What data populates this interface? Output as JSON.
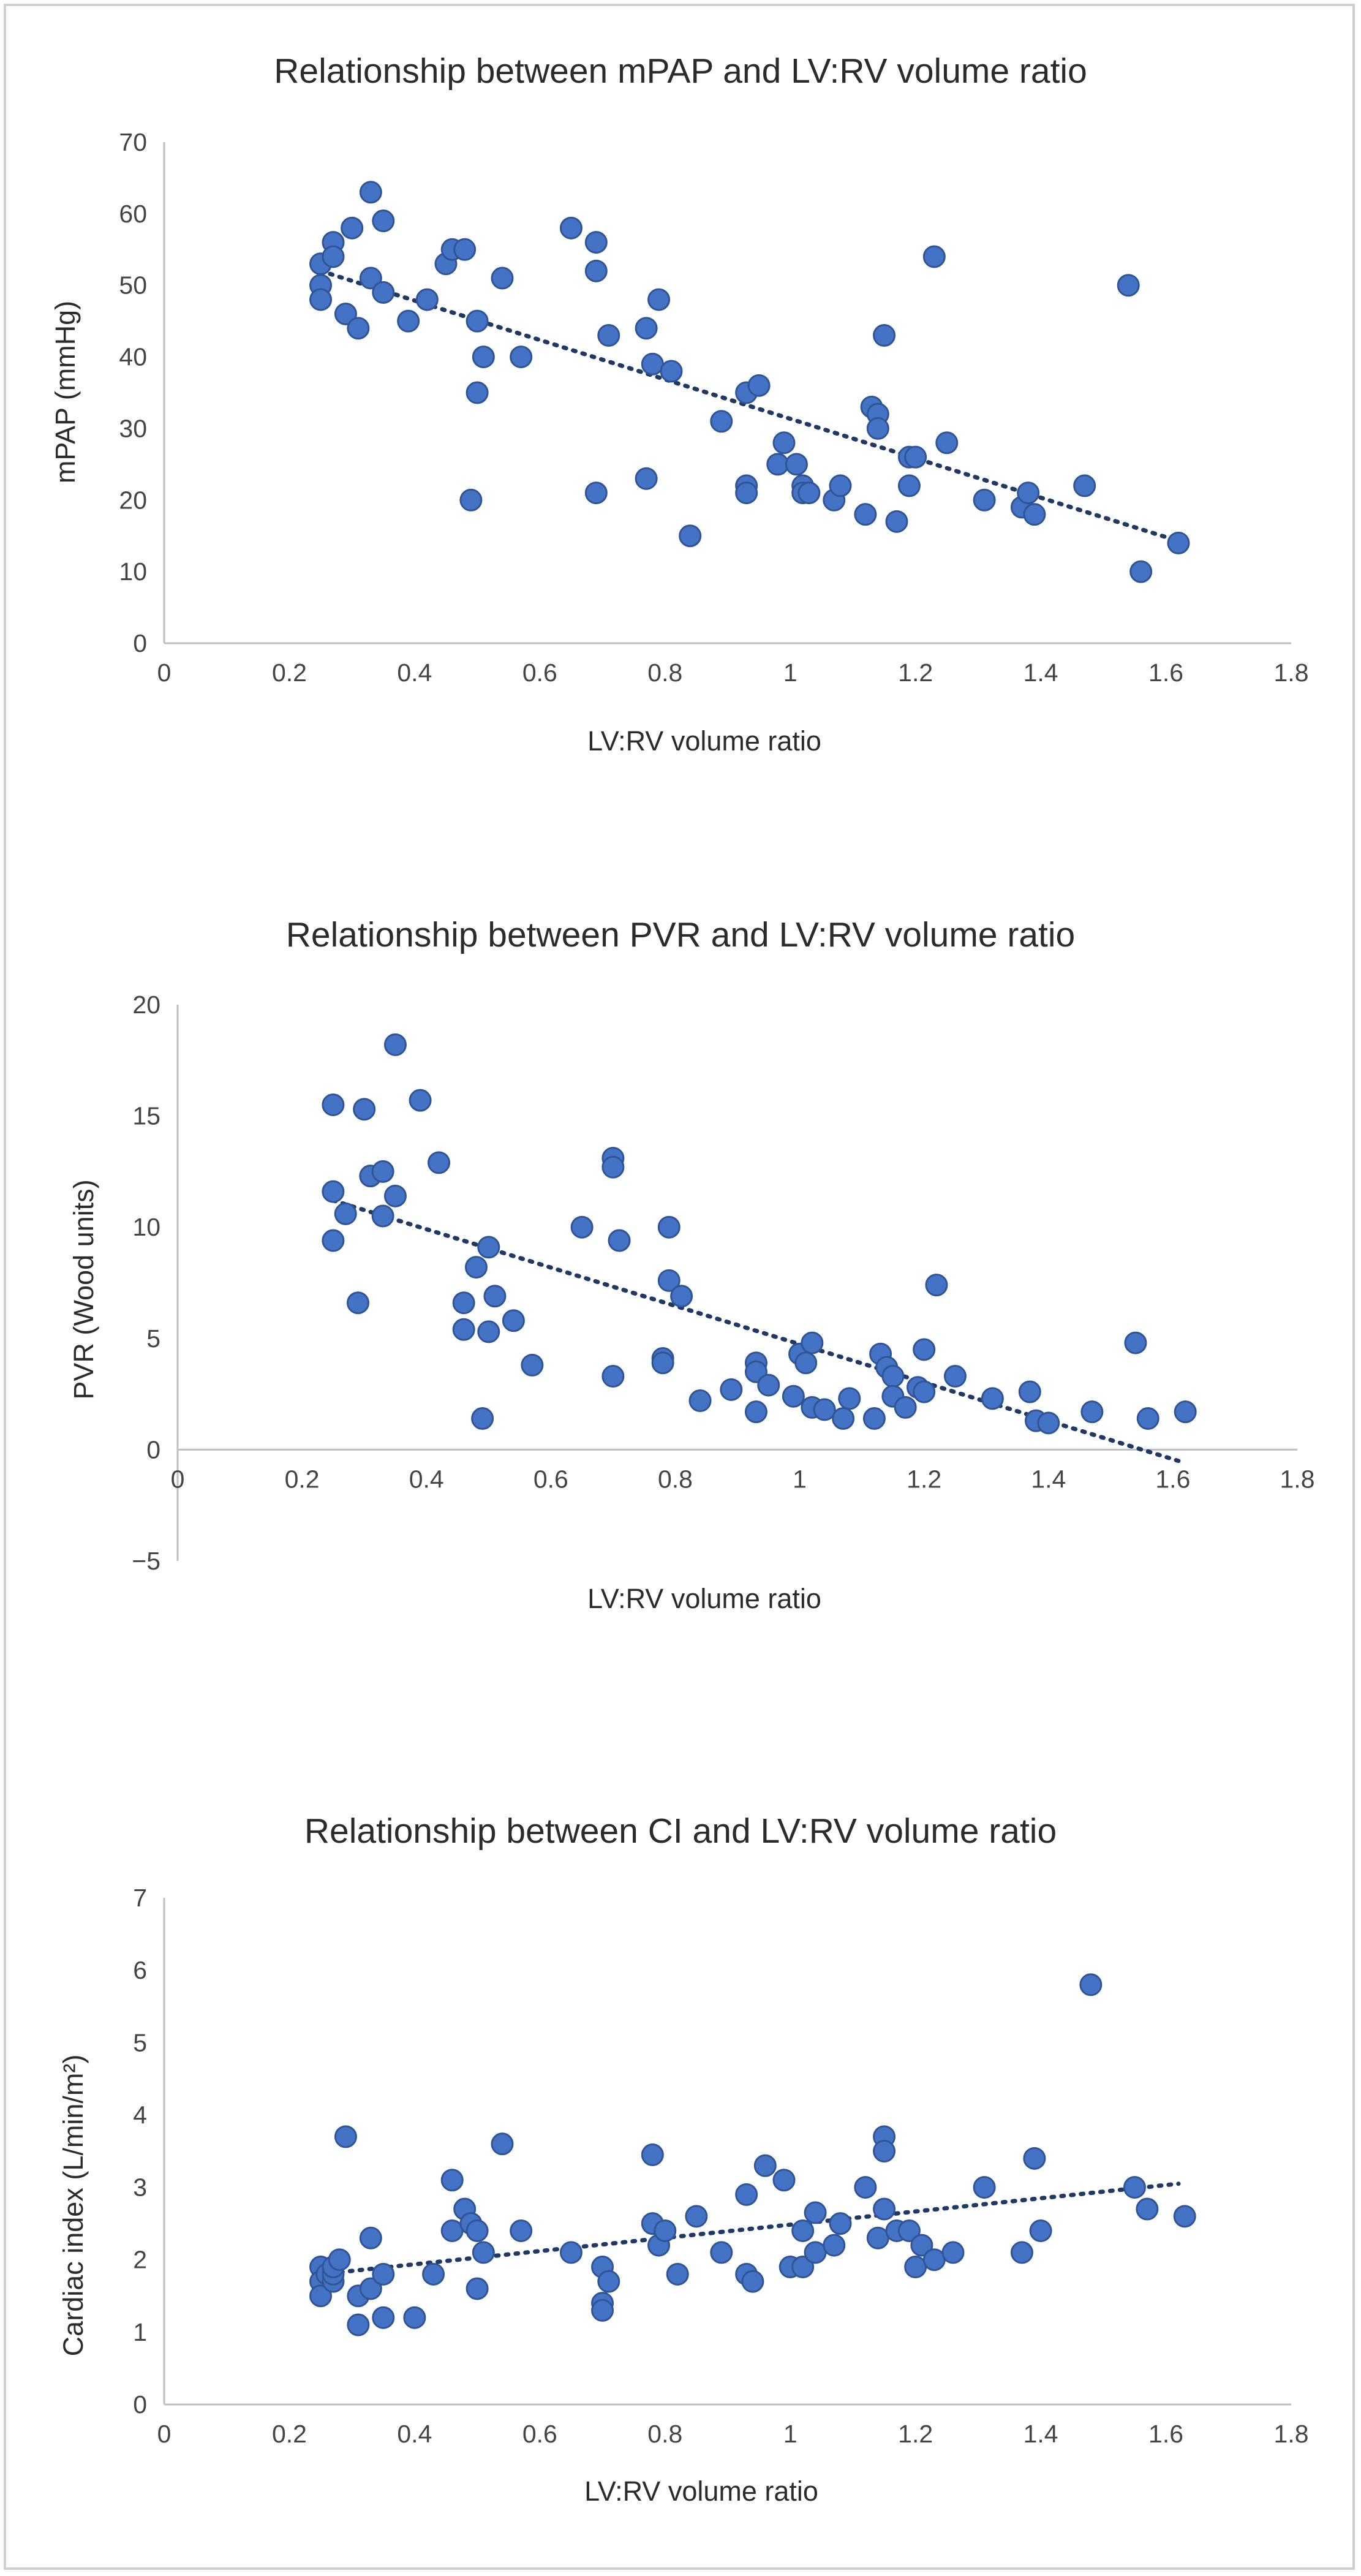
{
  "chart_data": [
    {
      "type": "scatter",
      "title": "Relationship between mPAP and LV:RV volume ratio",
      "xlabel": "LV:RV volume ratio",
      "ylabel": "mPAP (mmHg)",
      "xlim": [
        0,
        1.8
      ],
      "ylim": [
        0,
        70
      ],
      "xticks": [
        "0",
        "0.2",
        "0.4",
        "0.6",
        "0.8",
        "1",
        "1.2",
        "1.4",
        "1.6",
        "1.8"
      ],
      "yticks": [
        "0",
        "10",
        "20",
        "30",
        "40",
        "50",
        "60",
        "70"
      ],
      "grid": false,
      "legend": "none",
      "trendline": {
        "x": [
          0.25,
          1.63
        ],
        "y": [
          52,
          14
        ]
      },
      "marker_color": "#4472c4",
      "trend_color": "#1f3864",
      "points": [
        [
          0.25,
          53
        ],
        [
          0.25,
          50
        ],
        [
          0.25,
          48
        ],
        [
          0.27,
          56
        ],
        [
          0.27,
          54
        ],
        [
          0.29,
          46
        ],
        [
          0.31,
          44
        ],
        [
          0.3,
          58
        ],
        [
          0.33,
          63
        ],
        [
          0.33,
          51
        ],
        [
          0.35,
          59
        ],
        [
          0.35,
          49
        ],
        [
          0.39,
          45
        ],
        [
          0.42,
          48
        ],
        [
          0.45,
          53
        ],
        [
          0.46,
          55
        ],
        [
          0.48,
          55
        ],
        [
          0.49,
          20
        ],
        [
          0.5,
          45
        ],
        [
          0.5,
          35
        ],
        [
          0.51,
          40
        ],
        [
          0.54,
          51
        ],
        [
          0.57,
          40
        ],
        [
          0.65,
          58
        ],
        [
          0.69,
          56
        ],
        [
          0.69,
          52
        ],
        [
          0.69,
          21
        ],
        [
          0.71,
          43
        ],
        [
          0.77,
          44
        ],
        [
          0.77,
          23
        ],
        [
          0.78,
          39
        ],
        [
          0.79,
          48
        ],
        [
          0.81,
          38
        ],
        [
          0.84,
          15
        ],
        [
          0.89,
          31
        ],
        [
          0.93,
          35
        ],
        [
          0.93,
          22
        ],
        [
          0.93,
          21
        ],
        [
          0.95,
          36
        ],
        [
          0.98,
          25
        ],
        [
          0.99,
          28
        ],
        [
          1.01,
          25
        ],
        [
          1.02,
          22
        ],
        [
          1.02,
          21
        ],
        [
          1.03,
          21
        ],
        [
          1.07,
          20
        ],
        [
          1.08,
          22
        ],
        [
          1.12,
          18
        ],
        [
          1.13,
          33
        ],
        [
          1.14,
          32
        ],
        [
          1.14,
          30
        ],
        [
          1.15,
          43
        ],
        [
          1.17,
          17
        ],
        [
          1.19,
          22
        ],
        [
          1.19,
          26
        ],
        [
          1.2,
          26
        ],
        [
          1.23,
          54
        ],
        [
          1.25,
          28
        ],
        [
          1.31,
          20
        ],
        [
          1.37,
          19
        ],
        [
          1.38,
          21
        ],
        [
          1.39,
          18
        ],
        [
          1.47,
          22
        ],
        [
          1.54,
          50
        ],
        [
          1.56,
          10
        ],
        [
          1.62,
          14
        ]
      ]
    },
    {
      "type": "scatter",
      "title": "Relationship between PVR and LV:RV volume ratio",
      "xlabel": "LV:RV volume ratio",
      "ylabel": "PVR (Wood units)",
      "xlim": [
        0,
        1.8
      ],
      "ylim": [
        -5,
        20
      ],
      "xticks": [
        "0",
        "0.2",
        "0.4",
        "0.6",
        "0.8",
        "1",
        "1.2",
        "1.4",
        "1.6",
        "1.8"
      ],
      "yticks": [
        "−5",
        "0",
        "5",
        "10",
        "15",
        "20"
      ],
      "grid": false,
      "legend": "none",
      "trendline": {
        "x": [
          0.25,
          1.62
        ],
        "y": [
          11.2,
          -0.6
        ]
      },
      "marker_color": "#4472c4",
      "trend_color": "#1f3864",
      "points": [
        [
          0.25,
          15.5
        ],
        [
          0.25,
          11.6
        ],
        [
          0.25,
          9.4
        ],
        [
          0.27,
          10.6
        ],
        [
          0.29,
          6.6
        ],
        [
          0.3,
          15.3
        ],
        [
          0.31,
          12.3
        ],
        [
          0.33,
          12.5
        ],
        [
          0.33,
          10.5
        ],
        [
          0.35,
          18.2
        ],
        [
          0.35,
          11.4
        ],
        [
          0.39,
          15.7
        ],
        [
          0.42,
          12.9
        ],
        [
          0.46,
          6.6
        ],
        [
          0.46,
          5.4
        ],
        [
          0.48,
          8.2
        ],
        [
          0.49,
          1.4
        ],
        [
          0.5,
          9.1
        ],
        [
          0.5,
          5.3
        ],
        [
          0.51,
          6.9
        ],
        [
          0.54,
          5.8
        ],
        [
          0.57,
          3.8
        ],
        [
          0.65,
          10.0
        ],
        [
          0.7,
          13.1
        ],
        [
          0.7,
          12.7
        ],
        [
          0.7,
          3.3
        ],
        [
          0.71,
          9.4
        ],
        [
          0.78,
          4.1
        ],
        [
          0.78,
          3.9
        ],
        [
          0.79,
          7.6
        ],
        [
          0.79,
          10.0
        ],
        [
          0.81,
          6.9
        ],
        [
          0.84,
          2.2
        ],
        [
          0.89,
          2.7
        ],
        [
          0.93,
          3.9
        ],
        [
          0.93,
          3.5
        ],
        [
          0.93,
          1.7
        ],
        [
          0.95,
          2.9
        ],
        [
          0.99,
          2.4
        ],
        [
          1.0,
          4.3
        ],
        [
          1.01,
          3.9
        ],
        [
          1.02,
          4.8
        ],
        [
          1.02,
          1.9
        ],
        [
          1.04,
          1.8
        ],
        [
          1.07,
          1.4
        ],
        [
          1.08,
          2.3
        ],
        [
          1.12,
          1.4
        ],
        [
          1.13,
          4.3
        ],
        [
          1.14,
          3.7
        ],
        [
          1.15,
          3.3
        ],
        [
          1.15,
          2.4
        ],
        [
          1.17,
          1.9
        ],
        [
          1.19,
          2.8
        ],
        [
          1.2,
          4.5
        ],
        [
          1.2,
          2.6
        ],
        [
          1.22,
          7.4
        ],
        [
          1.25,
          3.3
        ],
        [
          1.31,
          2.3
        ],
        [
          1.37,
          2.6
        ],
        [
          1.38,
          1.3
        ],
        [
          1.4,
          1.2
        ],
        [
          1.47,
          1.7
        ],
        [
          1.54,
          4.8
        ],
        [
          1.56,
          1.4
        ],
        [
          1.62,
          1.7
        ]
      ]
    },
    {
      "type": "scatter",
      "title": "Relationship between CI and LV:RV volume ratio",
      "xlabel": "LV:RV volume ratio",
      "ylabel": "Cardiac index (L/min/m²)",
      "xlim": [
        0,
        1.8
      ],
      "ylim": [
        0,
        7
      ],
      "xticks": [
        "0",
        "0.2",
        "0.4",
        "0.6",
        "0.8",
        "1",
        "1.2",
        "1.4",
        "1.6",
        "1.8"
      ],
      "yticks": [
        "0",
        "1",
        "2",
        "3",
        "4",
        "5",
        "6",
        "7"
      ],
      "grid": false,
      "legend": "none",
      "trendline": {
        "x": [
          0.25,
          1.62
        ],
        "y": [
          1.8,
          3.05
        ]
      },
      "marker_color": "#4472c4",
      "trend_color": "#1f3864",
      "points": [
        [
          0.25,
          1.9
        ],
        [
          0.25,
          1.7
        ],
        [
          0.25,
          1.5
        ],
        [
          0.26,
          1.8
        ],
        [
          0.27,
          1.7
        ],
        [
          0.27,
          1.8
        ],
        [
          0.27,
          1.9
        ],
        [
          0.28,
          2.0
        ],
        [
          0.29,
          3.7
        ],
        [
          0.31,
          1.5
        ],
        [
          0.31,
          1.1
        ],
        [
          0.33,
          1.6
        ],
        [
          0.33,
          2.3
        ],
        [
          0.35,
          1.8
        ],
        [
          0.35,
          1.2
        ],
        [
          0.4,
          1.2
        ],
        [
          0.43,
          1.8
        ],
        [
          0.46,
          3.1
        ],
        [
          0.46,
          2.4
        ],
        [
          0.48,
          2.7
        ],
        [
          0.49,
          2.5
        ],
        [
          0.5,
          2.4
        ],
        [
          0.5,
          1.6
        ],
        [
          0.51,
          2.1
        ],
        [
          0.54,
          3.6
        ],
        [
          0.57,
          2.4
        ],
        [
          0.65,
          2.1
        ],
        [
          0.7,
          1.9
        ],
        [
          0.7,
          1.4
        ],
        [
          0.7,
          1.3
        ],
        [
          0.71,
          1.7
        ],
        [
          0.78,
          3.45
        ],
        [
          0.78,
          2.5
        ],
        [
          0.79,
          2.2
        ],
        [
          0.8,
          2.4
        ],
        [
          0.82,
          1.8
        ],
        [
          0.85,
          2.6
        ],
        [
          0.89,
          2.1
        ],
        [
          0.93,
          2.9
        ],
        [
          0.93,
          1.8
        ],
        [
          0.94,
          1.7
        ],
        [
          0.96,
          3.3
        ],
        [
          0.99,
          3.1
        ],
        [
          1.0,
          1.9
        ],
        [
          1.02,
          2.4
        ],
        [
          1.02,
          1.9
        ],
        [
          1.04,
          2.65
        ],
        [
          1.04,
          2.1
        ],
        [
          1.07,
          2.2
        ],
        [
          1.08,
          2.5
        ],
        [
          1.12,
          3.0
        ],
        [
          1.14,
          2.3
        ],
        [
          1.15,
          3.7
        ],
        [
          1.15,
          3.5
        ],
        [
          1.15,
          2.7
        ],
        [
          1.17,
          2.4
        ],
        [
          1.19,
          2.4
        ],
        [
          1.2,
          1.9
        ],
        [
          1.21,
          2.2
        ],
        [
          1.23,
          2.0
        ],
        [
          1.26,
          2.1
        ],
        [
          1.31,
          3.0
        ],
        [
          1.37,
          2.1
        ],
        [
          1.39,
          3.4
        ],
        [
          1.4,
          2.4
        ],
        [
          1.48,
          5.8
        ],
        [
          1.55,
          3.0
        ],
        [
          1.57,
          2.7
        ],
        [
          1.63,
          2.6
        ]
      ]
    }
  ]
}
